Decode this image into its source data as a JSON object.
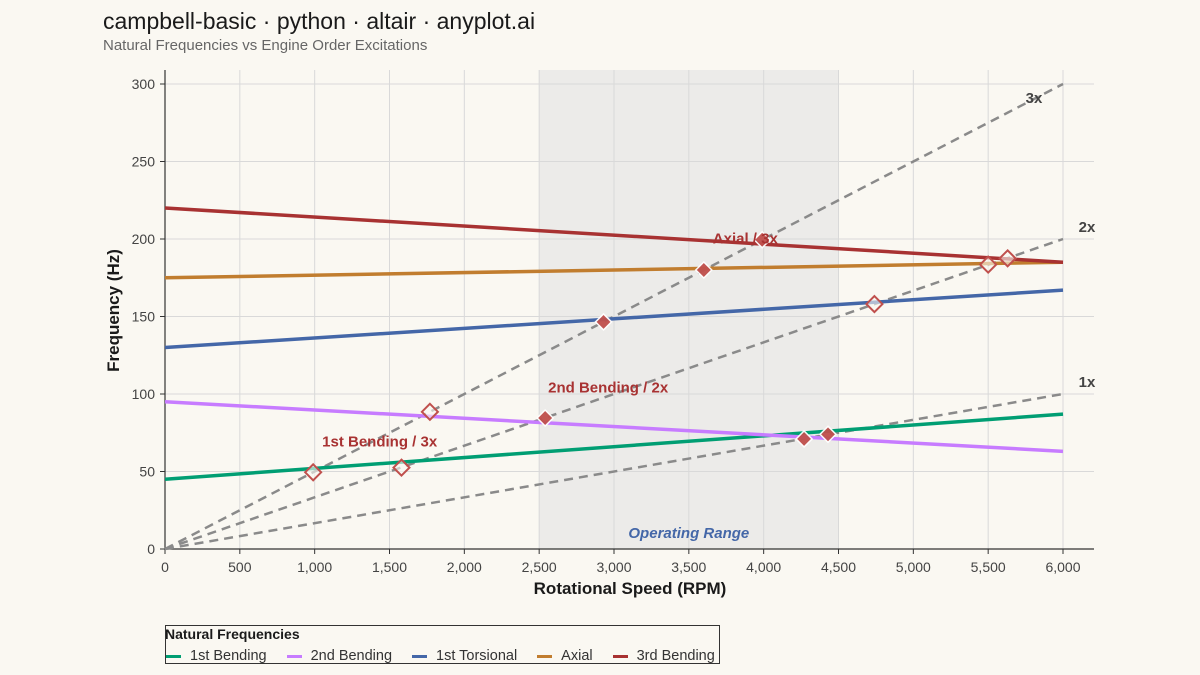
{
  "header": {
    "title": "campbell-basic · python · altair · anyplot.ai",
    "subtitle": "Natural Frequencies vs Engine Order Excitations"
  },
  "legend": {
    "title": "Natural Frequencies"
  },
  "chart_data": {
    "type": "line",
    "xlabel": "Rotational Speed (RPM)",
    "ylabel": "Frequency (Hz)",
    "xlim": [
      0,
      6000
    ],
    "ylim": [
      0,
      300
    ],
    "x_ticks": [
      0,
      500,
      1000,
      1500,
      2000,
      2500,
      3000,
      3500,
      4000,
      4500,
      5000,
      5500,
      6000
    ],
    "x_tick_labels": [
      "0",
      "500",
      "1,000",
      "1,500",
      "2,000",
      "2,500",
      "3,000",
      "3,500",
      "4,000",
      "4,500",
      "5,000",
      "5,500",
      "6,000"
    ],
    "y_ticks": [
      0,
      50,
      100,
      150,
      200,
      250,
      300
    ],
    "y_tick_labels": [
      "0",
      "50",
      "100",
      "150",
      "200",
      "250",
      "300"
    ],
    "grid": true,
    "legend_position": "bottom-left",
    "operating_range": {
      "label": "Operating Range",
      "x": [
        2500,
        4500
      ]
    },
    "series": [
      {
        "name": "1st Bending",
        "color": "#009e73",
        "x": [
          0,
          6000
        ],
        "y": [
          45,
          87
        ]
      },
      {
        "name": "2nd Bending",
        "color": "#c77cff",
        "x": [
          0,
          6000
        ],
        "y": [
          95,
          63
        ]
      },
      {
        "name": "1st Torsional",
        "color": "#4467a8",
        "x": [
          0,
          6000
        ],
        "y": [
          130,
          167
        ]
      },
      {
        "name": "Axial",
        "color": "#c17d2f",
        "x": [
          0,
          6000
        ],
        "y": [
          175,
          185
        ]
      },
      {
        "name": "3rd Bending",
        "color": "#a83232",
        "x": [
          0,
          6000
        ],
        "y": [
          220,
          185
        ]
      }
    ],
    "engine_orders": [
      {
        "label": "1x",
        "x": [
          0,
          6000
        ],
        "y": [
          0,
          100
        ]
      },
      {
        "label": "2x",
        "x": [
          0,
          6000
        ],
        "y": [
          0,
          200
        ]
      },
      {
        "label": "3x",
        "x": [
          0,
          6000
        ],
        "y": [
          0,
          300
        ]
      }
    ],
    "crossings": [
      {
        "rpm": 990,
        "hz": 49.5,
        "in_range": false
      },
      {
        "rpm": 1580,
        "hz": 52.5,
        "in_range": false
      },
      {
        "rpm": 1770,
        "hz": 88.5,
        "in_range": false
      },
      {
        "rpm": 2540,
        "hz": 84.5,
        "in_range": true
      },
      {
        "rpm": 2930,
        "hz": 146.5,
        "in_range": true
      },
      {
        "rpm": 3600,
        "hz": 180,
        "in_range": true
      },
      {
        "rpm": 3990,
        "hz": 199.5,
        "in_range": true
      },
      {
        "rpm": 4270,
        "hz": 71,
        "in_range": true
      },
      {
        "rpm": 4430,
        "hz": 74,
        "in_range": true
      },
      {
        "rpm": 4740,
        "hz": 158,
        "in_range": false
      },
      {
        "rpm": 5500,
        "hz": 183.5,
        "in_range": false
      },
      {
        "rpm": 5630,
        "hz": 187.5,
        "in_range": false
      }
    ],
    "annotations": [
      {
        "text": "1st Bending / 3x",
        "rpm": 1050,
        "hz": 66
      },
      {
        "text": "2nd Bending / 2x",
        "rpm": 2560,
        "hz": 101
      },
      {
        "text": "Axial / 3x",
        "rpm": 3660,
        "hz": 197
      }
    ],
    "colors": {
      "annotation": "#a83232",
      "operating_range_label": "#4467a8",
      "engine_order_line": "#8a8a8a",
      "marker_fill": "#c0504d"
    }
  }
}
